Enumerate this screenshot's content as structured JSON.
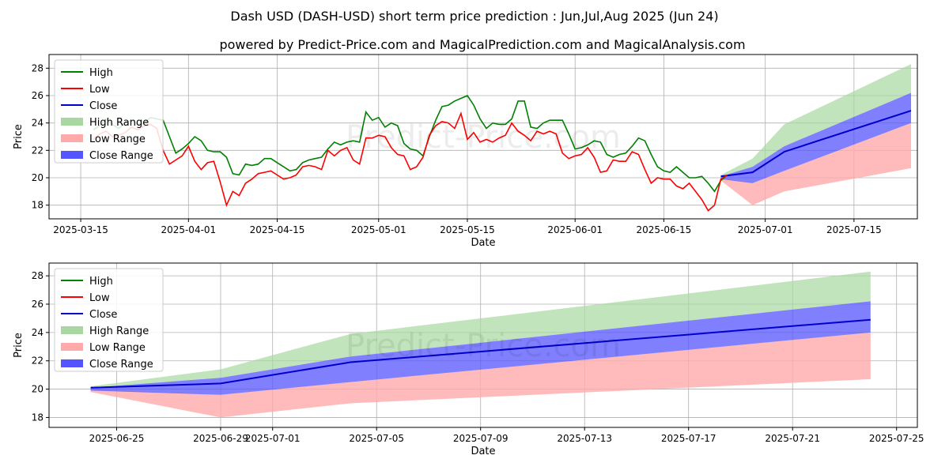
{
  "header": {
    "title": "Dash USD (DASH-USD) short term price prediction : Jun,Jul,Aug 2025 (Jun 24)",
    "subtitle": "powered by Predict-Price.com and MagicalPrediction.com and MagicalAnalysis.com"
  },
  "watermark": "Predict-Price.com",
  "colors": {
    "high": "#008000",
    "low": "#ff0000",
    "close": "#0000cc",
    "high_range": "#a8d8a0",
    "low_range": "#ffaaaa",
    "close_range": "#5555ff"
  },
  "chart_data": [
    {
      "type": "line",
      "name": "history-and-forecast",
      "xlabel": "Date",
      "ylabel": "Price",
      "grid": true,
      "legend_position": "top-left",
      "xlim": [
        -5,
        132
      ],
      "ylim": [
        17,
        29
      ],
      "x_ticks": [
        {
          "label": "2025-03-15",
          "day": 0
        },
        {
          "label": "2025-04-01",
          "day": 17
        },
        {
          "label": "2025-04-15",
          "day": 31
        },
        {
          "label": "2025-05-01",
          "day": 47
        },
        {
          "label": "2025-05-15",
          "day": 61
        },
        {
          "label": "2025-06-01",
          "day": 78
        },
        {
          "label": "2025-06-15",
          "day": 92
        },
        {
          "label": "2025-07-01",
          "day": 108
        },
        {
          "label": "2025-07-15",
          "day": 122
        }
      ],
      "y_ticks": [
        18,
        20,
        22,
        24,
        26,
        28
      ],
      "legend": [
        "High",
        "Low",
        "Close",
        "High Range",
        "Low Range",
        "Close Range"
      ],
      "history_start_day": 2,
      "history_high": [
        23.5,
        23.8,
        24.3,
        23.9,
        23.6,
        24.0,
        24.2,
        23.9,
        24.0,
        24.4,
        24.3,
        24.2,
        23.0,
        21.8,
        22.1,
        22.5,
        23.0,
        22.7,
        22.0,
        21.9,
        21.9,
        21.5,
        20.3,
        20.2,
        21.0,
        20.9,
        21.0,
        21.4,
        21.4,
        21.1,
        20.8,
        20.5,
        20.6,
        21.1,
        21.3,
        21.4,
        21.5,
        22.1,
        22.6,
        22.4,
        22.6,
        22.7,
        22.6,
        24.8,
        24.2,
        24.4,
        23.7,
        24.0,
        23.8,
        22.5,
        22.1,
        22.0,
        21.6,
        23.0,
        24.2,
        25.2,
        25.3,
        25.6,
        25.8,
        26.0,
        25.3,
        24.3,
        23.6,
        24.0,
        23.9,
        23.9,
        24.3,
        25.6,
        25.6,
        23.7,
        23.6,
        24.0,
        24.2,
        24.2,
        24.2,
        23.2,
        22.1,
        22.2,
        22.4,
        22.7,
        22.6,
        21.7,
        21.5,
        21.7,
        21.8,
        22.3,
        22.9,
        22.7,
        21.7,
        20.8,
        20.5,
        20.4,
        20.8,
        20.4,
        20.0,
        20.0,
        20.1,
        19.6,
        19.0,
        19.8,
        20.2
      ],
      "history_low": [
        22.8,
        23.2,
        23.4,
        23.0,
        23.1,
        23.3,
        23.7,
        23.5,
        23.8,
        23.9,
        23.6,
        22.0,
        21.0,
        21.3,
        21.6,
        22.3,
        21.2,
        20.6,
        21.1,
        21.2,
        19.7,
        18.0,
        19.0,
        18.7,
        19.6,
        19.9,
        20.3,
        20.4,
        20.5,
        20.2,
        19.9,
        20.0,
        20.2,
        20.8,
        20.9,
        20.8,
        20.6,
        22.0,
        21.6,
        22.0,
        22.2,
        21.3,
        21.0,
        22.9,
        22.9,
        23.1,
        23.0,
        22.2,
        21.7,
        21.6,
        20.6,
        20.8,
        21.5,
        23.1,
        23.8,
        24.1,
        24.0,
        23.6,
        24.7,
        22.8,
        23.3,
        22.6,
        22.8,
        22.6,
        22.9,
        23.1,
        24.0,
        23.4,
        23.1,
        22.7,
        23.4,
        23.2,
        23.4,
        23.2,
        21.8,
        21.4,
        21.6,
        21.7,
        22.2,
        21.5,
        20.4,
        20.5,
        21.3,
        21.2,
        21.2,
        21.9,
        21.7,
        20.6,
        19.6,
        20.0,
        19.9,
        19.9,
        19.4,
        19.2,
        19.6,
        19.0,
        18.4,
        17.6,
        18.0,
        19.9,
        20.2
      ],
      "forecast": [
        {
          "day": 101,
          "date": "2025-06-24",
          "high_top": 20.2,
          "high_bottom": 20.1,
          "low_top": 20.0,
          "low_bottom": 19.8,
          "close_top": 20.1,
          "close_bottom": 19.9,
          "close": 20.1
        },
        {
          "day": 106,
          "date": "2025-06-29",
          "high_top": 21.4,
          "high_bottom": 20.8,
          "low_top": 19.6,
          "low_bottom": 18.0,
          "close_top": 20.8,
          "close_bottom": 19.6,
          "close": 20.4
        },
        {
          "day": 111,
          "date": "2025-07-04",
          "high_top": 23.9,
          "high_bottom": 22.3,
          "low_top": 20.5,
          "low_bottom": 19.0,
          "close_top": 22.3,
          "close_bottom": 20.5,
          "close": 21.9
        },
        {
          "day": 131,
          "date": "2025-07-24",
          "high_top": 28.3,
          "high_bottom": 26.2,
          "low_top": 24.0,
          "low_bottom": 20.7,
          "close_top": 26.2,
          "close_bottom": 24.0,
          "close": 24.9
        }
      ]
    },
    {
      "type": "line",
      "name": "forecast-zoom",
      "xlabel": "Date",
      "ylabel": "Price",
      "grid": true,
      "legend_position": "top-left",
      "xlim": [
        -1.6,
        31.8
      ],
      "ylim": [
        17.3,
        28.9
      ],
      "x_ticks": [
        {
          "label": "2025-06-25",
          "day": 1
        },
        {
          "label": "2025-06-29",
          "day": 5
        },
        {
          "label": "2025-07-01",
          "day": 7
        },
        {
          "label": "2025-07-05",
          "day": 11
        },
        {
          "label": "2025-07-09",
          "day": 15
        },
        {
          "label": "2025-07-13",
          "day": 19
        },
        {
          "label": "2025-07-17",
          "day": 23
        },
        {
          "label": "2025-07-21",
          "day": 27
        },
        {
          "label": "2025-07-25",
          "day": 31
        }
      ],
      "y_ticks": [
        18,
        20,
        22,
        24,
        26,
        28
      ],
      "legend": [
        "High",
        "Low",
        "Close",
        "High Range",
        "Low Range",
        "Close Range"
      ]
    }
  ]
}
